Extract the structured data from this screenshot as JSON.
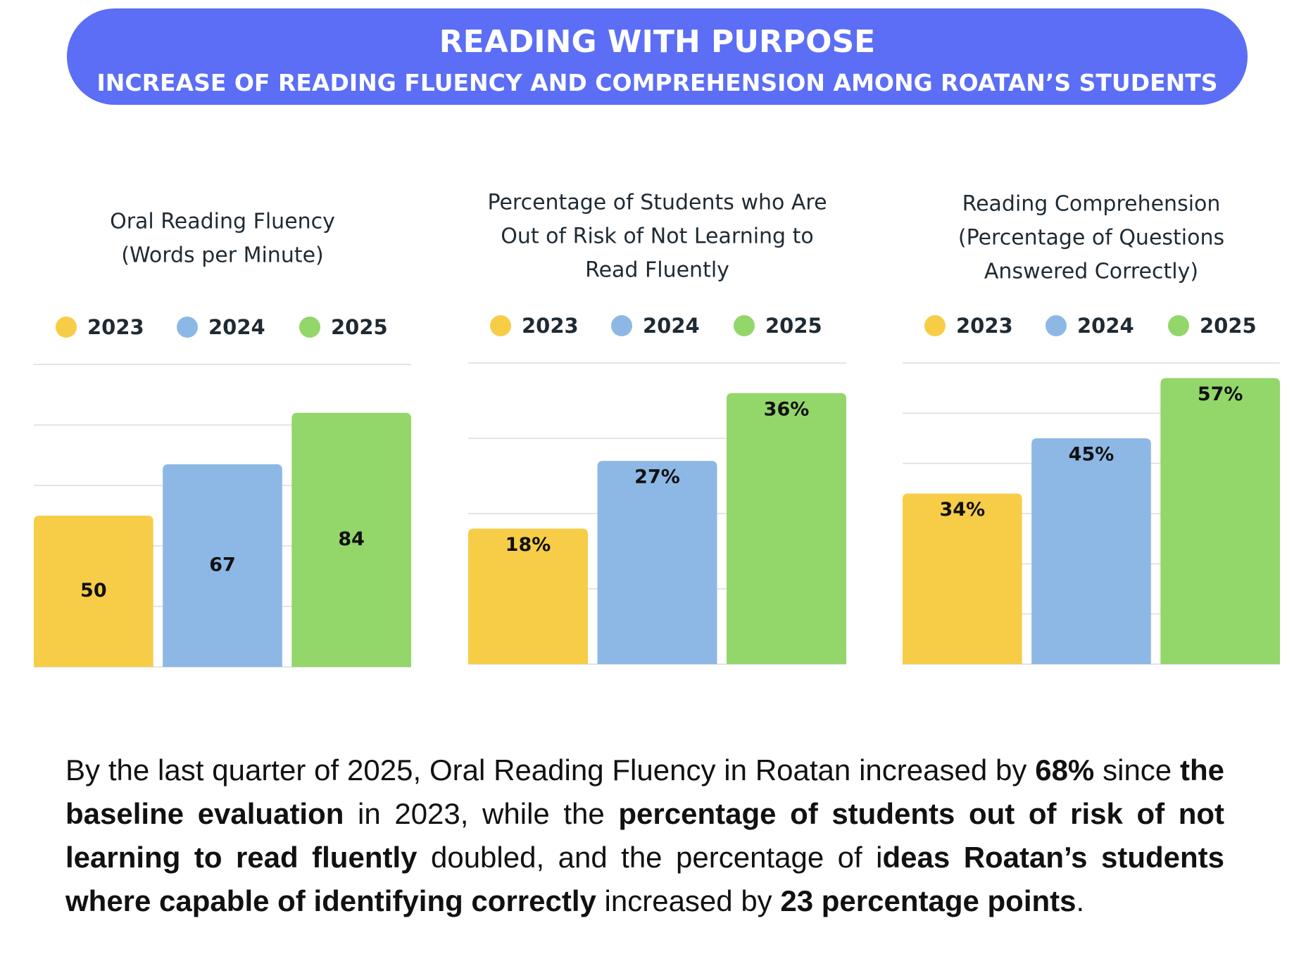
{
  "header": {
    "title": "READING WITH PURPOSE",
    "subtitle": "INCREASE OF READING FLUENCY AND COMPREHENSION AMONG ROATAN’S STUDENTS"
  },
  "chart_data": [
    {
      "type": "bar",
      "title": [
        "Oral Reading Fluency",
        "(Words per Minute)"
      ],
      "categories": [
        "2023",
        "2024",
        "2025"
      ],
      "values": [
        50,
        67,
        84
      ],
      "colors": [
        "#f7cd48",
        "#8db8e6",
        "#93d66a"
      ],
      "value_label_position": "center",
      "ylim": [
        0,
        100
      ],
      "yticks": [
        0,
        20,
        40,
        60,
        80,
        100
      ],
      "grid": true
    },
    {
      "type": "bar",
      "title": [
        "Percentage of Students who Are",
        "Out of Risk of Not Learning to",
        "Read Fluently"
      ],
      "categories": [
        "2023",
        "2024",
        "2025"
      ],
      "values": [
        18,
        27,
        36
      ],
      "value_labels": [
        "18%",
        "27%",
        "36%"
      ],
      "colors": [
        "#f7cd48",
        "#8db8e6",
        "#93d66a"
      ],
      "value_label_position": "top",
      "ylim": [
        0,
        40
      ],
      "yticks": [
        0,
        10,
        20,
        30,
        40
      ],
      "grid": true
    },
    {
      "type": "bar",
      "title": [
        "Reading Comprehension",
        "(Percentage of Questions",
        "Answered Correctly)"
      ],
      "categories": [
        "2023",
        "2024",
        "2025"
      ],
      "values": [
        34,
        45,
        57
      ],
      "value_labels": [
        "34%",
        "45%",
        "57%"
      ],
      "colors": [
        "#f7cd48",
        "#8db8e6",
        "#93d66a"
      ],
      "value_label_position": "top",
      "ylim": [
        0,
        60
      ],
      "yticks": [
        0,
        10,
        20,
        30,
        40,
        50,
        60
      ],
      "grid": true
    }
  ],
  "summary": [
    {
      "text": "By the last quarter of 2025, Oral Reading Fluency in Roatan increased by ",
      "bold": false
    },
    {
      "text": "68%",
      "bold": true
    },
    {
      "text": " since ",
      "bold": false
    },
    {
      "text": "the baseline evaluation",
      "bold": true
    },
    {
      "text": " in 2023, while the ",
      "bold": false
    },
    {
      "text": "percentage of students out of risk of not learning to read fluently",
      "bold": true
    },
    {
      "text": " doubled, and the percentage of i",
      "bold": false
    },
    {
      "text": "deas Roatan’s students where capable of identifying correctly",
      "bold": true
    },
    {
      "text": " increased by ",
      "bold": false
    },
    {
      "text": "23 percentage points",
      "bold": true
    },
    {
      "text": ".",
      "bold": false
    }
  ]
}
